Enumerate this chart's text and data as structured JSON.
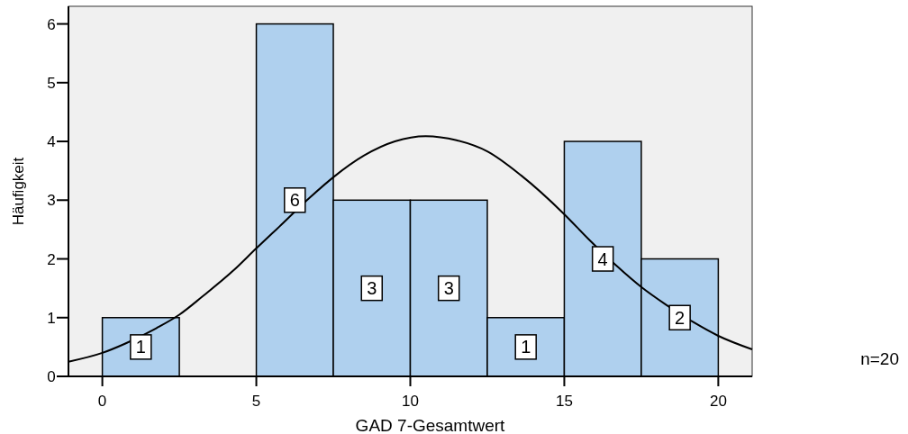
{
  "chart_data": {
    "type": "histogram",
    "xlabel": "GAD 7-Gesamtwert",
    "ylabel": "Häufigkeit",
    "annotations": [
      "n=20"
    ],
    "bins": [
      0,
      2.5,
      5,
      7.5,
      10,
      12.5,
      15,
      17.5,
      20
    ],
    "series": [
      {
        "color": "#afd0ee",
        "values": [
          1,
          0,
          6,
          3,
          3,
          1,
          4,
          2
        ],
        "value_labels": [
          "1",
          null,
          "6",
          "3",
          "3",
          "1",
          "4",
          "2"
        ]
      },
      {
        "type": "line",
        "color": "#000000",
        "x": [
          -1.1,
          0,
          0.75,
          1.75,
          2.5,
          3.25,
          4.25,
          5,
          5.75,
          6.75,
          7.5,
          8.5,
          9.5,
          10.5,
          11.5,
          12.5,
          13.6,
          15,
          15.8,
          16.7,
          17.5,
          18.3,
          19.2,
          20,
          21.1
        ],
        "values": [
          0.25,
          0.4,
          0.56,
          0.82,
          1.05,
          1.36,
          1.8,
          2.18,
          2.55,
          3.05,
          3.39,
          3.76,
          4.0,
          4.09,
          4.02,
          3.83,
          3.42,
          2.76,
          2.33,
          1.88,
          1.52,
          1.22,
          0.92,
          0.69,
          0.46
        ]
      }
    ],
    "xlim": [
      -1.1,
      21.1
    ],
    "ylim": [
      0,
      6.3
    ],
    "xticks": [
      0,
      5,
      10,
      15,
      20
    ],
    "yticks": [
      0,
      1,
      2,
      3,
      4,
      5,
      6
    ]
  }
}
